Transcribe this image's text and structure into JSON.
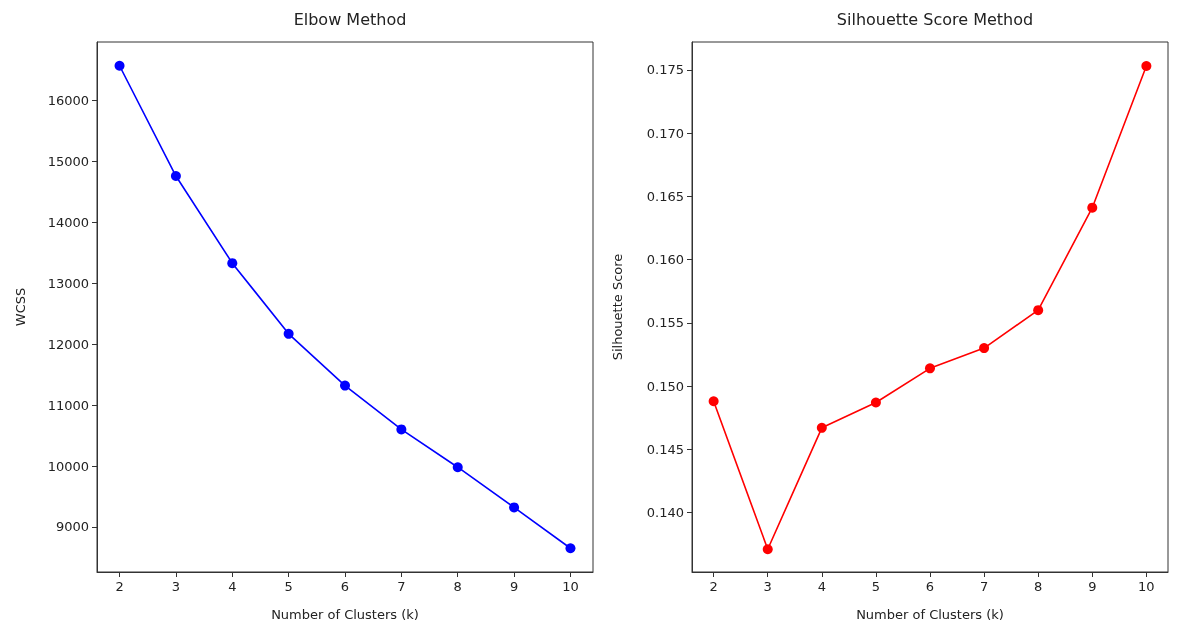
{
  "chart_data": [
    {
      "type": "line",
      "title": "Elbow Method",
      "xlabel": "Number of Clusters (k)",
      "ylabel": "WCSS",
      "x": [
        2,
        3,
        4,
        5,
        6,
        7,
        8,
        9,
        10
      ],
      "series": [
        {
          "color": "#0000ff",
          "values": [
            16570,
            14760,
            13330,
            12170,
            11320,
            10600,
            9980,
            9320,
            8650
          ]
        }
      ],
      "xlim": [
        1.6,
        10.4
      ],
      "xticks": [
        2,
        3,
        4,
        5,
        6,
        7,
        8,
        9,
        10
      ],
      "ylim": [
        8260,
        16960
      ],
      "yticks": [
        9000,
        10000,
        11000,
        12000,
        13000,
        14000,
        15000,
        16000
      ],
      "marker": "circle",
      "line_style": "solid",
      "grid": false
    },
    {
      "type": "line",
      "title": "Silhouette Score Method",
      "xlabel": "Number of Clusters (k)",
      "ylabel": "Silhouette Score",
      "x": [
        2,
        3,
        4,
        5,
        6,
        7,
        8,
        9,
        10
      ],
      "series": [
        {
          "color": "#ff0000",
          "values": [
            0.1488,
            0.1371,
            0.1467,
            0.1487,
            0.1514,
            0.153,
            0.156,
            0.1641,
            0.1753
          ]
        }
      ],
      "xlim": [
        1.6,
        10.4
      ],
      "xticks": [
        2,
        3,
        4,
        5,
        6,
        7,
        8,
        9,
        10
      ],
      "ylim": [
        0.1353,
        0.1772
      ],
      "yticks": [
        {
          "value": 0.14,
          "label": "0.140"
        },
        0.145,
        {
          "value": 0.15,
          "label": "0.150"
        },
        0.155,
        {
          "value": 0.16,
          "label": "0.160"
        },
        0.165,
        {
          "value": 0.17,
          "label": "0.170"
        },
        0.175
      ],
      "marker": "circle",
      "line_style": "solid",
      "grid": false
    }
  ]
}
